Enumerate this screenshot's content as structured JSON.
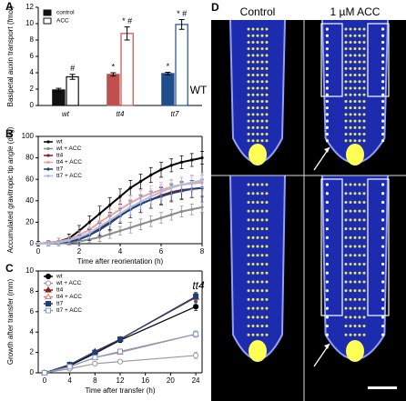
{
  "chart_data": [
    {
      "type": "bar",
      "panel": "A",
      "ylabel": "Basipetal auxin transport (fmol)",
      "categories": [
        "wt",
        "tt4",
        "tt7"
      ],
      "series": [
        {
          "name": "control",
          "colors": [
            "#111111",
            "#c0504d",
            "#1f4e8c"
          ],
          "filled": true,
          "values": [
            1.9,
            3.8,
            3.9
          ],
          "errors": [
            0.2,
            0.2,
            0.15
          ],
          "annotations": [
            null,
            "*",
            "*"
          ]
        },
        {
          "name": "ACC",
          "colors": [
            "#111111",
            "#c0504d",
            "#1f4e8c"
          ],
          "filled": false,
          "values": [
            3.5,
            8.8,
            9.9
          ],
          "errors": [
            0.3,
            0.8,
            0.6
          ],
          "annotations": [
            "#",
            "* #",
            "* #"
          ]
        }
      ],
      "ylim": [
        0,
        12
      ],
      "yticks": [
        0,
        2,
        4,
        6,
        8,
        10,
        12
      ],
      "legend": "upper left"
    },
    {
      "type": "line",
      "panel": "B",
      "xlabel": "Time after reorientation (h)",
      "ylabel": "Accumulated gravitropic tip angle (deg)",
      "x": [
        0,
        0.5,
        1,
        1.5,
        2,
        2.5,
        3,
        3.5,
        4,
        4.5,
        5,
        5.5,
        6,
        6.5,
        7,
        7.5,
        8
      ],
      "series": [
        {
          "name": "wt",
          "color": "#000000",
          "values": [
            0,
            1,
            2,
            5,
            12,
            20,
            28,
            36,
            44,
            52,
            58,
            64,
            69,
            73,
            76,
            78,
            80
          ],
          "errors": [
            2,
            2,
            3,
            4,
            5,
            6,
            7,
            7,
            7,
            7,
            7,
            7,
            7,
            6,
            6,
            6,
            6
          ]
        },
        {
          "name": "wt + ACC",
          "color": "#8c8c8c",
          "values": [
            0,
            0,
            0,
            1,
            2,
            4,
            6,
            9,
            12,
            15,
            18,
            21,
            24,
            27,
            30,
            32,
            34
          ],
          "errors": [
            1,
            1,
            2,
            2,
            3,
            3,
            4,
            4,
            4,
            5,
            5,
            5,
            5,
            5,
            5,
            5,
            5
          ]
        },
        {
          "name": "tt4",
          "color": "#8b1a1a",
          "values": [
            0,
            0,
            1,
            2,
            4,
            8,
            14,
            20,
            26,
            32,
            37,
            41,
            45,
            48,
            50,
            51,
            52
          ],
          "errors": [
            1,
            2,
            2,
            3,
            4,
            5,
            6,
            7,
            7,
            8,
            8,
            8,
            8,
            8,
            8,
            8,
            8
          ]
        },
        {
          "name": "tt4 + ACC",
          "color": "#f0a0a0",
          "values": [
            0,
            1,
            2,
            4,
            8,
            13,
            20,
            26,
            32,
            38,
            43,
            47,
            50,
            53,
            55,
            56,
            57
          ],
          "errors": [
            1,
            2,
            3,
            3,
            4,
            5,
            6,
            6,
            7,
            7,
            7,
            7,
            7,
            7,
            7,
            7,
            7
          ]
        },
        {
          "name": "tt7",
          "color": "#1f3f7a",
          "values": [
            0,
            0,
            1,
            2,
            4,
            8,
            13,
            19,
            26,
            32,
            37,
            41,
            44,
            47,
            49,
            51,
            52
          ],
          "errors": [
            1,
            2,
            2,
            3,
            4,
            5,
            6,
            7,
            7,
            8,
            8,
            8,
            8,
            8,
            8,
            8,
            8
          ]
        },
        {
          "name": "tt7 + ACC",
          "color": "#a9c0e0",
          "values": [
            0,
            0,
            1,
            3,
            6,
            10,
            16,
            22,
            28,
            34,
            39,
            44,
            48,
            52,
            55,
            57,
            59
          ],
          "errors": [
            1,
            2,
            2,
            3,
            4,
            5,
            6,
            6,
            7,
            7,
            7,
            7,
            7,
            7,
            7,
            7,
            7
          ]
        }
      ],
      "xlim": [
        0,
        8
      ],
      "xticks": [
        0,
        2,
        4,
        6,
        8
      ],
      "ylim": [
        0,
        100
      ],
      "yticks": [
        0,
        20,
        40,
        60,
        80,
        100
      ],
      "legend": "upper left",
      "marker": "dot"
    },
    {
      "type": "line",
      "panel": "C",
      "xlabel": "Time after transfer (h)",
      "ylabel": "Growth after transfer (mm)",
      "x": [
        0,
        4,
        8,
        12,
        24
      ],
      "series": [
        {
          "name": "wt",
          "color": "#000000",
          "values": [
            0,
            0.7,
            1.9,
            3.2,
            6.5
          ],
          "errors": [
            0.05,
            0.1,
            0.15,
            0.2,
            0.4
          ]
        },
        {
          "name": "wt + ACC",
          "color": "#9a9a9a",
          "values": [
            0,
            0.4,
            0.9,
            1.1,
            1.7
          ],
          "errors": [
            0.05,
            0.1,
            0.1,
            0.15,
            0.3
          ]
        },
        {
          "name": "tt4",
          "color": "#8b1a1a",
          "values": [
            0,
            0.8,
            2.1,
            3.3,
            7.4
          ],
          "errors": [
            0.05,
            0.1,
            0.15,
            0.2,
            0.4
          ]
        },
        {
          "name": "tt4 + ACC",
          "color": "#d08080",
          "values": [
            0,
            0.6,
            1.5,
            2.0,
            3.8
          ],
          "errors": [
            0.05,
            0.1,
            0.1,
            0.15,
            0.3
          ]
        },
        {
          "name": "tt7",
          "color": "#1f3f7a",
          "values": [
            0,
            0.8,
            2.0,
            3.3,
            7.5
          ],
          "errors": [
            0.05,
            0.1,
            0.15,
            0.2,
            0.4
          ]
        },
        {
          "name": "tt7 + ACC",
          "color": "#7f9cc8",
          "values": [
            0,
            0.6,
            1.5,
            2.1,
            3.8
          ],
          "errors": [
            0.05,
            0.1,
            0.1,
            0.15,
            0.3
          ]
        }
      ],
      "xlim": [
        -1,
        25
      ],
      "xticks": [
        0,
        4,
        8,
        12,
        16,
        20,
        24
      ],
      "ylim": [
        0,
        10
      ],
      "yticks": [
        0,
        2,
        4,
        6,
        8,
        10
      ],
      "legend": "upper left",
      "marker": "symbol"
    }
  ],
  "micrograph": {
    "panel": "D",
    "columns": [
      "Control",
      "1 µM ACC"
    ],
    "rows": [
      "WT",
      "tt4"
    ]
  }
}
